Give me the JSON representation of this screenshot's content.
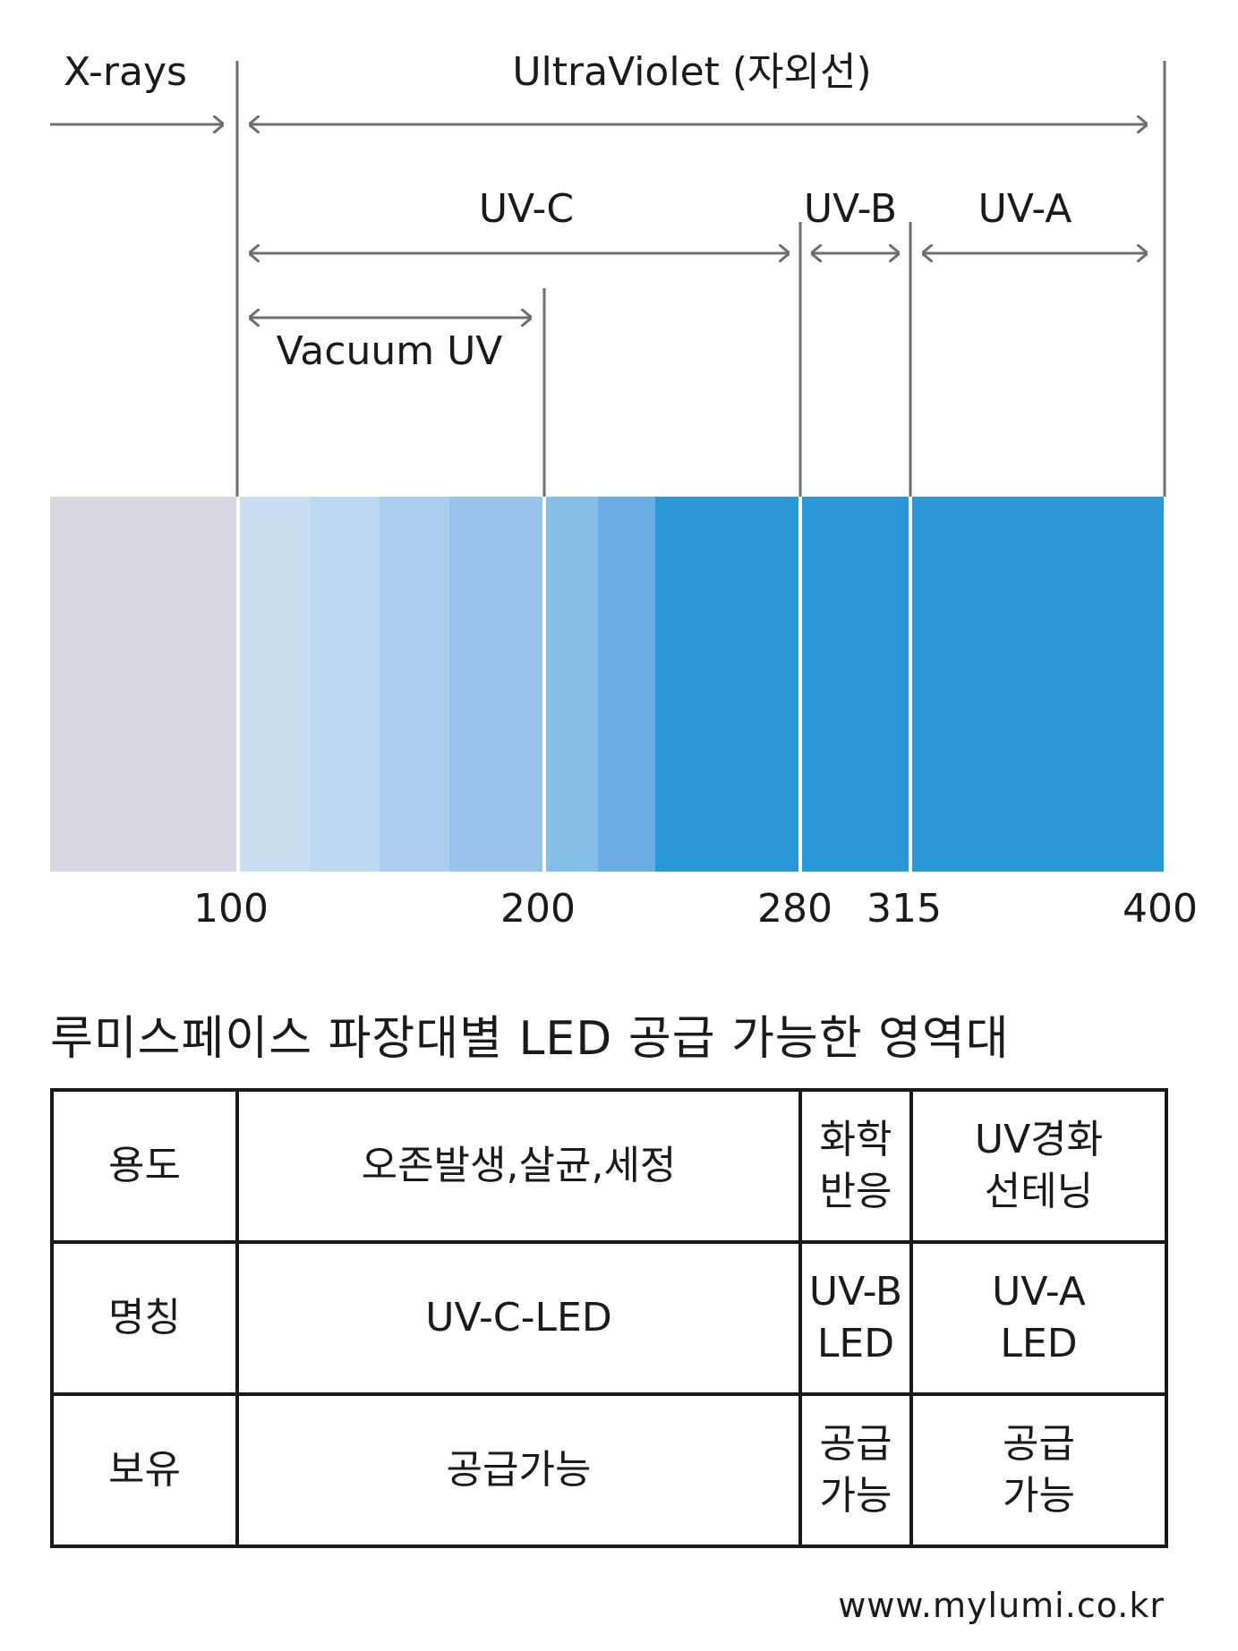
{
  "diagram": {
    "range_labels": {
      "xrays": "X-rays",
      "ultraviolet": "UltraViolet (자외선)",
      "uvc": "UV-C",
      "uvb": "UV-B",
      "uva": "UV-A",
      "vacuum_uv": "Vacuum UV"
    },
    "wavelength_ticks": [
      "100",
      "200",
      "280",
      "315",
      "400"
    ],
    "colors": {
      "xray_band": "#d7d7e2",
      "uv_shades": [
        "#c9def1",
        "#bcd9f1",
        "#aacdee",
        "#98c3ec",
        "#84bde8",
        "#6aade2",
        "#2898d8"
      ],
      "line": "#6e6e6e"
    }
  },
  "table": {
    "title": "루미스페이스 파장대별 LED 공급 가능한 영역대",
    "rows": [
      [
        "용도",
        "오존발생,살균,세정",
        "화학\n반응",
        "UV경화\n선테닝"
      ],
      [
        "명칭",
        "UV-C-LED",
        "UV-B\nLED",
        "UV-A\nLED"
      ],
      [
        "보유",
        "공급가능",
        "공급\n가능",
        "공급\n가능"
      ]
    ]
  },
  "footer": {
    "url": "www.mylumi.co.kr"
  }
}
